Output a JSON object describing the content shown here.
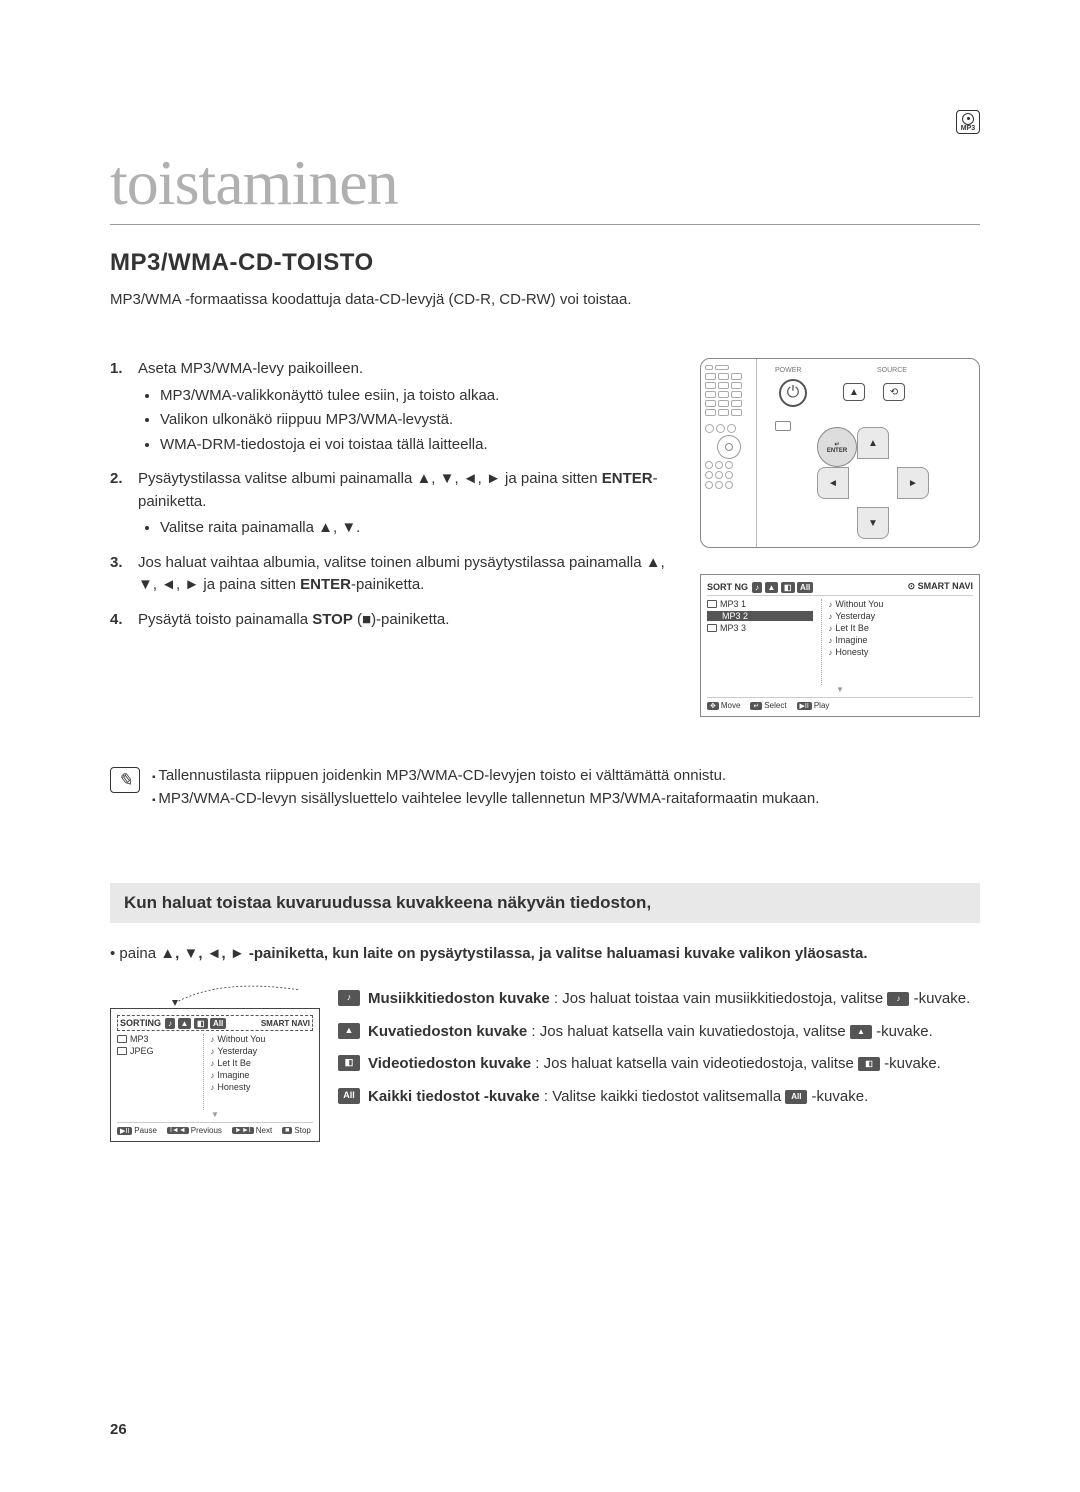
{
  "page": {
    "title": "toistaminen",
    "section_heading": "MP3/WMA-CD-TOISTO",
    "intro": "MP3/WMA -formaatissa koodattuja data-CD-levyjä (CD-R, CD-RW) voi toistaa.",
    "page_number": "26"
  },
  "disc_badge": "MP3",
  "steps": [
    {
      "num": "1.",
      "text": "Aseta MP3/WMA-levy paikoilleen.",
      "bullets": [
        "MP3/WMA-valikkonäyttö tulee esiin, ja toisto alkaa.",
        "Valikon ulkonäkö riippuu MP3/WMA-levystä.",
        "WMA-DRM-tiedostoja ei voi toistaa tällä laitteella."
      ]
    },
    {
      "num": "2.",
      "text_pre": "Pysäytystilassa valitse albumi painamalla ▲, ▼, ◄, ► ja paina sitten ",
      "enter": "ENTER",
      "text_post": "-painiketta.",
      "bullets": [
        "Valitse raita painamalla ▲, ▼."
      ]
    },
    {
      "num": "3.",
      "text_pre": "Jos haluat vaihtaa albumia, valitse toinen albumi pysäytystilassa painamalla ▲, ▼, ◄, ► ja paina sitten ",
      "enter": "ENTER",
      "text_post": "-painiketta.",
      "bullets": []
    },
    {
      "num": "4.",
      "text_pre": "Pysäytä toisto painamalla ",
      "stop": "STOP",
      "text_post": " (■)-painiketta.",
      "bullets": []
    }
  ],
  "remote": {
    "power_label": "POWER",
    "source_label": "SOURCE",
    "enter_label": "ENTER"
  },
  "nav1": {
    "sort_label": "SORT NG",
    "smart_label": "SMART NAVI",
    "folders": [
      "MP3 1",
      "MP3 2",
      "MP3 3"
    ],
    "selected_folder_index": 1,
    "tracks": [
      "Without You",
      "Yesterday",
      "Let It Be",
      "Imagine",
      "Honesty"
    ],
    "footer": [
      {
        "key": "✥",
        "label": "Move"
      },
      {
        "key": "↵",
        "label": "Select"
      },
      {
        "key": "▶II",
        "label": "Play"
      }
    ],
    "chips": [
      "♪",
      "▲",
      "◧",
      "All"
    ],
    "chip_colors": [
      "#555555",
      "#555555",
      "#555555",
      "#555555"
    ]
  },
  "notes": [
    "Tallennustilasta riippuen joidenkin MP3/WMA-CD-levyjen toisto ei välttämättä onnistu.",
    "MP3/WMA-CD-levyn sisällysluettelo vaihtelee levylle tallennetun MP3/WMA-raitaformaatin mukaan."
  ],
  "sub": {
    "heading": "Kun haluat toistaa kuvaruudussa kuvakkeena näkyvän tiedoston,",
    "instr_pre": "• paina ",
    "instr_keys": "▲, ▼, ◄, ►",
    "instr_post": " -painiketta, kun laite on pysäytystilassa, ja valitse haluamasi kuvake valikon yläosasta."
  },
  "nav2": {
    "sort_label": "SORTING",
    "smart_label": "SMART NAVI",
    "folders": [
      "MP3",
      "JPEG"
    ],
    "tracks": [
      "Without You",
      "Yesterday",
      "Let It Be",
      "Imagine",
      "Honesty"
    ],
    "footer": [
      {
        "key": "▶II",
        "label": "Pause"
      },
      {
        "key": "I◄◄",
        "label": "Previous"
      },
      {
        "key": "►►I",
        "label": "Next"
      },
      {
        "key": "■",
        "label": "Stop"
      }
    ],
    "chips": [
      "♪",
      "▲",
      "◧",
      "All"
    ]
  },
  "icon_rows": [
    {
      "icon": "♪",
      "title": "Musiikkitiedoston kuvake",
      "desc_pre": " : Jos haluat toistaa vain musiikkitiedostoja, valitse ",
      "desc_post": " -kuvake.",
      "inline_icon": "♪"
    },
    {
      "icon": "▲",
      "title": "Kuvatiedoston kuvake",
      "desc_pre": " : Jos haluat katsella vain kuvatiedostoja, valitse ",
      "desc_post": " -kuvake.",
      "inline_icon": "▲"
    },
    {
      "icon": "◧",
      "title": "Videotiedoston kuvake",
      "desc_pre": " : Jos haluat katsella vain videotiedostoja, valitse ",
      "desc_post": " -kuvake.",
      "inline_icon": "◧"
    },
    {
      "icon": "All",
      "title": "Kaikki tiedostot -kuvake",
      "desc_pre": " : Valitse kaikki tiedostot valitsemalla ",
      "desc_post": " -kuvake.",
      "inline_icon": "All"
    }
  ],
  "colors": {
    "title_color": "#b0b0b0",
    "text_color": "#333333",
    "chip_bg": "#555555",
    "sub_heading_bg": "#e8e8e8"
  }
}
